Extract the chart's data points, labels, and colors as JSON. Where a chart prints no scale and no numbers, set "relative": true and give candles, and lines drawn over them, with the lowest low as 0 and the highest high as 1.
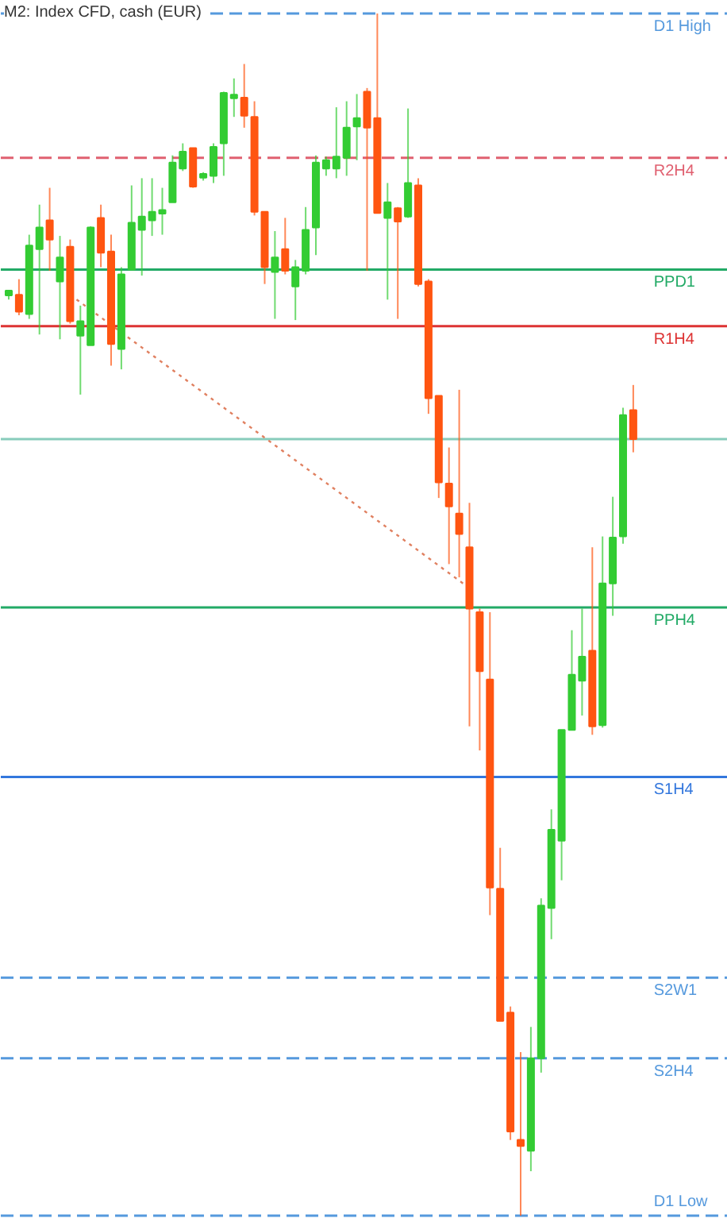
{
  "chart_data": {
    "type": "candlestick",
    "title": "M2:  Index CFD, cash (EUR)",
    "relative": true,
    "categories": [
      null,
      null,
      null,
      null,
      null,
      null,
      null,
      null,
      null,
      null,
      null,
      null,
      null,
      null,
      null,
      null,
      null,
      null,
      null,
      null,
      null,
      null,
      null,
      null,
      null,
      null,
      null,
      null,
      null,
      null,
      null,
      null,
      null,
      null,
      null,
      null,
      null,
      null,
      null,
      null,
      null,
      null,
      null,
      null,
      null,
      null,
      null,
      null,
      null,
      null,
      null,
      null,
      null,
      null,
      null,
      null,
      null,
      null,
      null,
      null,
      null,
      null
    ],
    "ohlc": [
      [
        0.767,
        0.77,
        0.762,
        0.768
      ],
      [
        0.766,
        0.779,
        0.749,
        0.752
      ],
      [
        0.75,
        0.816,
        0.746,
        0.807
      ],
      [
        0.804,
        0.841,
        0.733,
        0.822
      ],
      [
        0.828,
        0.855,
        0.786,
        0.812
      ],
      [
        0.777,
        0.815,
        0.729,
        0.797
      ],
      [
        0.806,
        0.812,
        0.742,
        0.744
      ],
      [
        0.732,
        0.757,
        0.683,
        0.744
      ],
      [
        0.724,
        0.823,
        0.724,
        0.822
      ],
      [
        0.83,
        0.841,
        0.789,
        0.801
      ],
      [
        0.802,
        0.816,
        0.707,
        0.725
      ],
      [
        0.721,
        0.789,
        0.704,
        0.783
      ],
      [
        0.787,
        0.857,
        0.787,
        0.826
      ],
      [
        0.82,
        0.863,
        0.782,
        0.831
      ],
      [
        0.828,
        0.863,
        0.815,
        0.835
      ],
      [
        0.835,
        0.855,
        0.816,
        0.835
      ],
      [
        0.843,
        0.882,
        0.843,
        0.876
      ],
      [
        0.871,
        0.892,
        0.869,
        0.885
      ],
      [
        0.888,
        0.888,
        0.855,
        0.856
      ],
      [
        0.865,
        0.868,
        0.861,
        0.865
      ],
      [
        0.865,
        0.892,
        0.859,
        0.889
      ],
      [
        0.892,
        0.935,
        0.865,
        0.934
      ],
      [
        0.931,
        0.946,
        0.914,
        0.931
      ],
      [
        0.93,
        0.958,
        0.905,
        0.915
      ],
      [
        0.914,
        0.927,
        0.832,
        0.835
      ],
      [
        0.835,
        0.835,
        0.775,
        0.789
      ],
      [
        0.785,
        0.819,
        0.746,
        0.797
      ],
      [
        0.804,
        0.83,
        0.783,
        0.786
      ],
      [
        0.773,
        0.795,
        0.745,
        0.789
      ],
      [
        0.786,
        0.839,
        0.783,
        0.82
      ],
      [
        0.822,
        0.882,
        0.799,
        0.876
      ],
      [
        0.871,
        0.881,
        0.865,
        0.878
      ],
      [
        0.871,
        0.922,
        0.863,
        0.881
      ],
      [
        0.88,
        0.927,
        0.865,
        0.905
      ],
      [
        0.906,
        0.933,
        0.878,
        0.913
      ],
      [
        0.935,
        0.938,
        0.786,
        0.905
      ],
      [
        0.913,
        1.0,
        0.834,
        0.834
      ],
      [
        0.83,
        0.859,
        0.762,
        0.843
      ],
      [
        0.838,
        0.839,
        0.746,
        0.827
      ],
      [
        0.831,
        0.921,
        0.83,
        0.859
      ],
      [
        0.857,
        0.863,
        0.773,
        0.775
      ],
      [
        0.777,
        0.779,
        0.667,
        0.68
      ],
      [
        0.682,
        0.682,
        0.597,
        0.61
      ],
      [
        0.609,
        0.639,
        0.542,
        0.59
      ],
      [
        0.584,
        0.687,
        0.531,
        0.567
      ],
      [
        0.556,
        0.593,
        0.407,
        0.505
      ],
      [
        0.502,
        0.505,
        0.387,
        0.453
      ],
      [
        0.446,
        0.502,
        0.25,
        0.273
      ],
      [
        0.272,
        0.306,
        0.162,
        0.162
      ],
      [
        0.169,
        0.174,
        0.063,
        0.07
      ],
      [
        0.063,
        0.136,
        0.0,
        0.058
      ],
      [
        0.054,
        0.157,
        0.037,
        0.131
      ],
      [
        0.131,
        0.264,
        0.119,
        0.258
      ],
      [
        0.256,
        0.338,
        0.23,
        0.321
      ],
      [
        0.312,
        0.404,
        0.279,
        0.404
      ],
      [
        0.404,
        0.487,
        0.404,
        0.45
      ],
      [
        0.445,
        0.505,
        0.416,
        0.465
      ],
      [
        0.47,
        0.556,
        0.4,
        0.407
      ],
      [
        0.408,
        0.565,
        0.406,
        0.526
      ],
      [
        0.526,
        0.598,
        0.499,
        0.564
      ],
      [
        0.565,
        0.672,
        0.559,
        0.666
      ],
      [
        0.67,
        0.691,
        0.635,
        0.646
      ]
    ],
    "colors": [
      "#33cc33",
      "#ff5511",
      "#33cc33",
      "#33cc33",
      "#ff5511",
      "#33cc33",
      "#ff5511",
      "#33cc33",
      "#33cc33",
      "#ff5511",
      "#ff5511",
      "#33cc33",
      "#33cc33",
      "#33cc33",
      "#33cc33",
      "#33cc33",
      "#33cc33",
      "#33cc33",
      "#ff5511",
      "#33cc33",
      "#33cc33",
      "#33cc33",
      "#33cc33",
      "#ff5511",
      "#ff5511",
      "#ff5511",
      "#33cc33",
      "#ff5511",
      "#33cc33",
      "#33cc33",
      "#33cc33",
      "#33cc33",
      "#33cc33",
      "#33cc33",
      "#33cc33",
      "#ff5511",
      "#ff5511",
      "#33cc33",
      "#ff5511",
      "#33cc33",
      "#ff5511",
      "#ff5511",
      "#ff5511",
      "#ff5511",
      "#ff5511",
      "#ff5511",
      "#ff5511",
      "#ff5511",
      "#ff5511",
      "#ff5511",
      "#ff5511",
      "#33cc33",
      "#33cc33",
      "#33cc33",
      "#33cc33",
      "#33cc33",
      "#33cc33",
      "#ff5511",
      "#33cc33",
      "#33cc33",
      "#33cc33",
      "#ff5511"
    ],
    "series": [
      {
        "type": "line",
        "color": "#e08060",
        "line_style": "dotted",
        "values": [
          null,
          null,
          null,
          null,
          null,
          null,
          0.766,
          null,
          null,
          null,
          null,
          null,
          null,
          null,
          null,
          null,
          null,
          null,
          null,
          null,
          null,
          null,
          null,
          null,
          null,
          null,
          null,
          null,
          null,
          null,
          null,
          null,
          null,
          null,
          null,
          null,
          null,
          null,
          null,
          null,
          null,
          null,
          null,
          null,
          null,
          0.522,
          null,
          null,
          null,
          null,
          null,
          null,
          null,
          null,
          null,
          null,
          null,
          null,
          null,
          null,
          null,
          null
        ]
      }
    ],
    "ref_lines": [
      {
        "axis": "y",
        "value": 1.0,
        "label": "D1 High",
        "color": "#5599dd",
        "line_style": "dashed"
      },
      {
        "axis": "y",
        "value": 0.88,
        "label": "R2H4",
        "color": "#e06070",
        "line_style": "dashed"
      },
      {
        "axis": "y",
        "value": 0.787,
        "label": "PPD1",
        "color": "#22aa66",
        "line_style": "solid"
      },
      {
        "axis": "y",
        "value": 0.74,
        "label": "R1H4",
        "color": "#dd3333",
        "line_style": "solid"
      },
      {
        "axis": "y",
        "value": 0.646,
        "label": null,
        "color": "#88ccbb",
        "line_style": "solid"
      },
      {
        "axis": "y",
        "value": 0.506,
        "label": "PPH4",
        "color": "#22aa66",
        "line_style": "solid"
      },
      {
        "axis": "y",
        "value": 0.365,
        "label": "S1H4",
        "color": "#3377dd",
        "line_style": "solid"
      },
      {
        "axis": "y",
        "value": 0.198,
        "label": "S2W1",
        "color": "#5599dd",
        "line_style": "dashed"
      },
      {
        "axis": "y",
        "value": 0.131,
        "label": "S2H4",
        "color": "#5599dd",
        "line_style": "dashed"
      },
      {
        "axis": "y",
        "value": 0.0,
        "label": "D1 Low",
        "color": "#5599dd",
        "line_style": "dashed"
      }
    ]
  }
}
